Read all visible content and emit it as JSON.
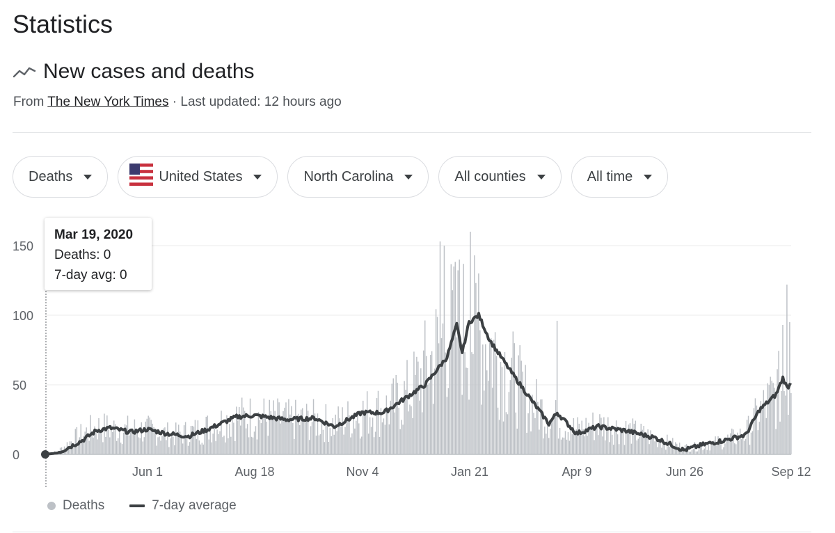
{
  "page": {
    "title": "Statistics"
  },
  "section": {
    "title": "New cases and deaths",
    "source_prefix": "From",
    "source_link": "The New York Times",
    "source_suffix": "· Last updated: 12 hours ago"
  },
  "filters": [
    {
      "label": "Deaths"
    },
    {
      "label": "United States",
      "icon": "us-flag-icon"
    },
    {
      "label": "North Carolina"
    },
    {
      "label": "All counties"
    },
    {
      "label": "All time"
    }
  ],
  "tooltip": {
    "date": "Mar 19, 2020",
    "deaths": "Deaths: 0",
    "avg": "7-day avg: 0"
  },
  "legend": {
    "bars": "Deaths",
    "line": "7-day average"
  },
  "colors": {
    "bar": "#bdc1c6",
    "line": "#3c4043",
    "grid": "#ebebeb",
    "axis_text": "#5f6368"
  },
  "chart_data": {
    "type": "bar",
    "title": "",
    "xlabel": "",
    "ylabel": "",
    "ylim": [
      0,
      160
    ],
    "y_ticks": [
      0,
      50,
      100,
      150
    ],
    "x_tick_labels": [
      "Jun 1",
      "Aug 18",
      "Nov 4",
      "Jan 21",
      "Apr 9",
      "Jun 26",
      "Sep 12"
    ],
    "grid": true,
    "legend_position": "bottom-left",
    "series": [
      {
        "name": "Deaths",
        "type": "bar",
        "anchors": [
          [
            "2020-03-19",
            0
          ],
          [
            "2020-03-28",
            2
          ],
          [
            "2020-04-10",
            12
          ],
          [
            "2020-04-25",
            20
          ],
          [
            "2020-05-15",
            18
          ],
          [
            "2020-06-01",
            18
          ],
          [
            "2020-06-20",
            14
          ],
          [
            "2020-07-10",
            18
          ],
          [
            "2020-08-01",
            26
          ],
          [
            "2020-08-18",
            28
          ],
          [
            "2020-09-10",
            25
          ],
          [
            "2020-10-01",
            25
          ],
          [
            "2020-10-15",
            22
          ],
          [
            "2020-11-04",
            30
          ],
          [
            "2020-11-25",
            34
          ],
          [
            "2020-12-10",
            46
          ],
          [
            "2020-12-25",
            70
          ],
          [
            "2021-01-05",
            90
          ],
          [
            "2021-01-21",
            95
          ],
          [
            "2021-02-05",
            80
          ],
          [
            "2021-02-20",
            60
          ],
          [
            "2021-03-05",
            40
          ],
          [
            "2021-03-20",
            28
          ],
          [
            "2021-04-09",
            18
          ],
          [
            "2021-04-25",
            22
          ],
          [
            "2021-05-15",
            18
          ],
          [
            "2021-06-05",
            12
          ],
          [
            "2021-06-26",
            5
          ],
          [
            "2021-07-10",
            6
          ],
          [
            "2021-07-25",
            10
          ],
          [
            "2021-08-10",
            15
          ],
          [
            "2021-08-20",
            30
          ],
          [
            "2021-09-01",
            45
          ],
          [
            "2021-09-12",
            55
          ]
        ],
        "peaks": [
          [
            "2020-12-31",
            153
          ],
          [
            "2021-01-03",
            150
          ],
          [
            "2021-01-10",
            135
          ],
          [
            "2021-01-14",
            140
          ],
          [
            "2021-01-22",
            160
          ],
          [
            "2021-01-28",
            130
          ],
          [
            "2021-03-26",
            96
          ],
          [
            "2021-09-06",
            93
          ],
          [
            "2021-09-09",
            122
          ],
          [
            "2021-09-11",
            95
          ]
        ]
      },
      {
        "name": "7-day average",
        "type": "line",
        "values": [
          [
            "2020-03-19",
            0
          ],
          [
            "2020-03-28",
            1
          ],
          [
            "2020-04-05",
            5
          ],
          [
            "2020-04-15",
            10
          ],
          [
            "2020-04-25",
            17
          ],
          [
            "2020-05-05",
            19
          ],
          [
            "2020-05-20",
            16
          ],
          [
            "2020-06-01",
            18
          ],
          [
            "2020-06-15",
            15
          ],
          [
            "2020-07-01",
            13
          ],
          [
            "2020-07-15",
            18
          ],
          [
            "2020-08-05",
            27
          ],
          [
            "2020-08-18",
            28
          ],
          [
            "2020-09-10",
            25
          ],
          [
            "2020-10-01",
            26
          ],
          [
            "2020-10-15",
            20
          ],
          [
            "2020-11-04",
            30
          ],
          [
            "2020-11-20",
            30
          ],
          [
            "2020-12-05",
            40
          ],
          [
            "2020-12-20",
            50
          ],
          [
            "2021-01-05",
            70
          ],
          [
            "2021-01-12",
            93
          ],
          [
            "2021-01-16",
            73
          ],
          [
            "2021-01-21",
            95
          ],
          [
            "2021-01-28",
            100
          ],
          [
            "2021-02-05",
            82
          ],
          [
            "2021-02-20",
            60
          ],
          [
            "2021-03-05",
            42
          ],
          [
            "2021-03-20",
            22
          ],
          [
            "2021-03-26",
            30
          ],
          [
            "2021-04-09",
            15
          ],
          [
            "2021-04-25",
            20
          ],
          [
            "2021-05-15",
            17
          ],
          [
            "2021-06-05",
            12
          ],
          [
            "2021-06-26",
            3
          ],
          [
            "2021-07-10",
            7
          ],
          [
            "2021-07-25",
            10
          ],
          [
            "2021-08-10",
            14
          ],
          [
            "2021-08-20",
            32
          ],
          [
            "2021-09-01",
            43
          ],
          [
            "2021-09-06",
            55
          ],
          [
            "2021-09-09",
            48
          ],
          [
            "2021-09-12",
            51
          ]
        ]
      }
    ]
  }
}
